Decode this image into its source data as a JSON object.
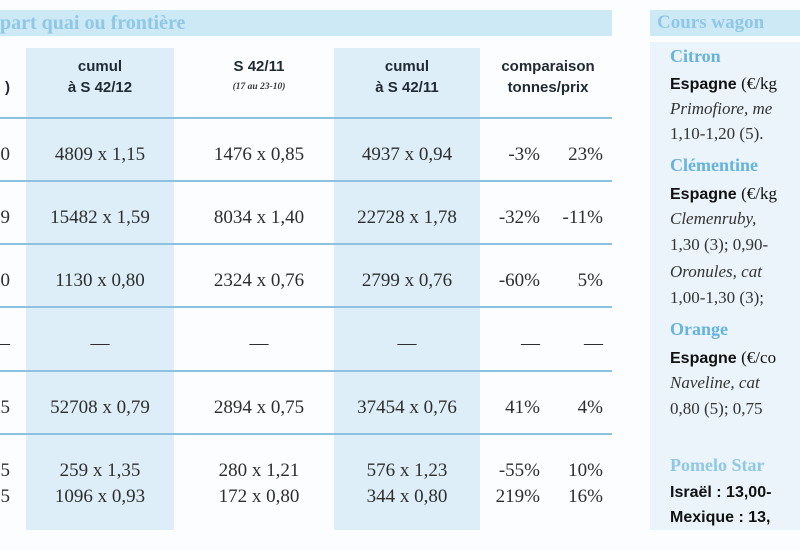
{
  "left_title": "part quai ou frontière",
  "right_title": "Cours wagon",
  "headers": {
    "cumul1": {
      "l1": "cumul",
      "l2": "à S 42/12"
    },
    "week": {
      "l1": "S 42/11",
      "l2": "(17 au 23-10)"
    },
    "cumul2": {
      "l1": "cumul",
      "l2": "à S 42/11"
    },
    "comparison": {
      "l1": "comparaison",
      "l2": "tonnes/prix"
    },
    "partial": ")"
  },
  "rows": [
    {
      "p": "0",
      "c1": "4809 x 1,15",
      "c2": "1476 x 0,85",
      "c3": "4937 x 0,94",
      "t": "-3%",
      "pr": "23%"
    },
    {
      "p": "9",
      "c1": "15482 x 1,59",
      "c2": "8034 x 1,40",
      "c3": "22728 x 1,78",
      "t": "-32%",
      "pr": "-11%"
    },
    {
      "p": "0",
      "c1": "1130 x 0,80",
      "c2": "2324 x 0,76",
      "c3": "2799 x 0,76",
      "t": "-60%",
      "pr": "5%"
    },
    {
      "p": "—",
      "c1": "—",
      "c2": "—",
      "c3": "—",
      "t": "—",
      "pr": "—"
    },
    {
      "p": "5",
      "c1": "52708 x 0,79",
      "c2": "2894 x 0,75",
      "c3": "37454 x 0,76",
      "t": "41%",
      "pr": "4%"
    },
    {
      "p": "5",
      "c1": "259 x 1,35",
      "c2": "280 x 1,21",
      "c3": "576 x 1,23",
      "t": "-55%",
      "pr": "10%"
    },
    {
      "p": "5",
      "c1": "1096 x 0,93",
      "c2": "172 x 0,80",
      "c3": "344 x 0,80",
      "t": "219%",
      "pr": "16%"
    }
  ],
  "right": {
    "citron": {
      "name": "Citron",
      "country": "Espagne",
      "unit": "(€/kg",
      "variety": "Primofiore, me",
      "price": "1,10-1,20 (5)."
    },
    "clementine": {
      "name": "Clémentine",
      "country": "Espagne",
      "unit": "(€/kg",
      "variety1": "Clemenruby,",
      "price1": "1,30 (3); 0,90-",
      "variety2": "Oronules, cat",
      "price2": "1,00-1,30 (3);"
    },
    "orange": {
      "name": "Orange",
      "country": "Espagne",
      "unit": "(€/co",
      "variety": "Naveline, cat",
      "price": "0,80 (5); 0,75"
    },
    "pomelo": {
      "name": "Pomelo Star",
      "israel_label": "Israël :",
      "israel_price": "13,00-",
      "mexique_label": "Mexique :",
      "mexique_price": "13,"
    }
  }
}
